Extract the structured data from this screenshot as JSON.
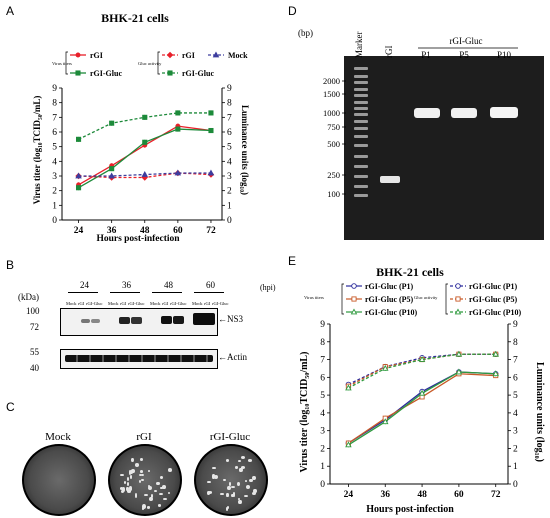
{
  "panels": {
    "A": "A",
    "B": "B",
    "C": "C",
    "D": "D",
    "E": "E"
  },
  "colors": {
    "red": "#e8202a",
    "green": "#1d8a3a",
    "purple": "#3d3d9e",
    "blue": "#2b2b9c",
    "orange": "#c85a28",
    "lightgreen": "#2e9a3e"
  },
  "panelA": {
    "title": "BHK-21 cells",
    "legend": {
      "virus_titers": "Virus titers",
      "gluc_activity": "Gluc activity",
      "rGI": "rGI",
      "rGIGluc": "rGI-Gluc",
      "mock": "Mock"
    },
    "xlabel": "Hours post-infection",
    "ylabel_left": "Virus titer (log₁₀TCID₅₀/mL)",
    "ylabel_right": "Luminance units (log₁₀)"
  },
  "panelB": {
    "unit": "(kDa)",
    "hpi_label": "(hpi)",
    "times": [
      "24",
      "36",
      "48",
      "60"
    ],
    "lane_labels": [
      "Mock",
      "rGI",
      "rGI-Gluc"
    ],
    "markers": [
      "100",
      "72",
      "55",
      "40"
    ],
    "bands": {
      "ns3": "NS3",
      "actin": "Actin"
    }
  },
  "panelC": {
    "labels": [
      "Mock",
      "rGI",
      "rGI-Gluc"
    ]
  },
  "panelD": {
    "unit": "(bp)",
    "lanes": [
      "Marker",
      "rGI"
    ],
    "group_label": "rGI-Gluc",
    "group_lanes": [
      "P1",
      "P5",
      "P10"
    ],
    "markers": [
      "2000",
      "1500",
      "1000",
      "750",
      "500",
      "250",
      "100"
    ]
  },
  "panelE": {
    "title": "BHK-21 cells",
    "legend": {
      "virus_titers": "Virus titers",
      "gluc_activity": "Gluc activity",
      "p1": "rGI-Gluc (P1)",
      "p5": "rGI-Gluc (P5)",
      "p10": "rGI-Gluc (P10)"
    },
    "xlabel": "Hours post-infection",
    "ylabel_left": "Virus titer (log₁₀TCID₅₀/mL)",
    "ylabel_right": "Luminance units (log₁₀)"
  },
  "chart_data": [
    {
      "type": "line",
      "title": "BHK-21 cells",
      "xlabel": "Hours post-infection",
      "ylabel": "Virus titer (log10TCID50/mL)",
      "ylabel_right": "Luminance units (log10)",
      "x": [
        24,
        36,
        48,
        60,
        72
      ],
      "xlim": [
        18,
        76
      ],
      "ylim": [
        0,
        9
      ],
      "series": [
        {
          "name": "rGI",
          "axis": "left",
          "style": "solid",
          "color": "#e8202a",
          "values": [
            2.4,
            3.7,
            5.1,
            6.4,
            6.1
          ]
        },
        {
          "name": "rGI-Gluc",
          "axis": "left",
          "style": "solid",
          "color": "#1d8a3a",
          "values": [
            2.2,
            3.5,
            5.3,
            6.2,
            6.1
          ]
        },
        {
          "name": "rGI",
          "axis": "right",
          "style": "dashed",
          "color": "#e8202a",
          "values": [
            3.0,
            2.9,
            2.9,
            3.2,
            3.1
          ]
        },
        {
          "name": "rGI-Gluc",
          "axis": "right",
          "style": "dashed",
          "color": "#1d8a3a",
          "values": [
            5.5,
            6.6,
            7.0,
            7.3,
            7.3
          ]
        },
        {
          "name": "Mock",
          "axis": "right",
          "style": "dashed",
          "color": "#3d3d9e",
          "values": [
            3.0,
            3.0,
            3.1,
            3.2,
            3.2
          ]
        }
      ]
    },
    {
      "type": "line",
      "title": "BHK-21 cells",
      "xlabel": "Hours post-infection",
      "ylabel": "Virus titer (log10TCID50/mL)",
      "ylabel_right": "Luminance units (log10)",
      "x": [
        24,
        36,
        48,
        60,
        72
      ],
      "xlim": [
        18,
        76
      ],
      "ylim": [
        0,
        9
      ],
      "series": [
        {
          "name": "rGI-Gluc (P1)",
          "axis": "left",
          "style": "solid",
          "color": "#2b2b9c",
          "values": [
            2.3,
            3.6,
            5.2,
            6.3,
            6.2
          ]
        },
        {
          "name": "rGI-Gluc (P5)",
          "axis": "left",
          "style": "solid",
          "color": "#c85a28",
          "values": [
            2.3,
            3.7,
            4.9,
            6.2,
            6.1
          ]
        },
        {
          "name": "rGI-Gluc (P10)",
          "axis": "left",
          "style": "solid",
          "color": "#2e9a3e",
          "values": [
            2.2,
            3.5,
            5.1,
            6.3,
            6.2
          ]
        },
        {
          "name": "rGI-Gluc (P1)",
          "axis": "right",
          "style": "dashed",
          "color": "#2b2b9c",
          "values": [
            5.6,
            6.6,
            7.1,
            7.3,
            7.3
          ]
        },
        {
          "name": "rGI-Gluc (P5)",
          "axis": "right",
          "style": "dashed",
          "color": "#c85a28",
          "values": [
            5.5,
            6.6,
            7.0,
            7.3,
            7.3
          ]
        },
        {
          "name": "rGI-Gluc (P10)",
          "axis": "right",
          "style": "dashed",
          "color": "#2e9a3e",
          "values": [
            5.4,
            6.5,
            7.0,
            7.3,
            7.3
          ]
        }
      ]
    }
  ]
}
